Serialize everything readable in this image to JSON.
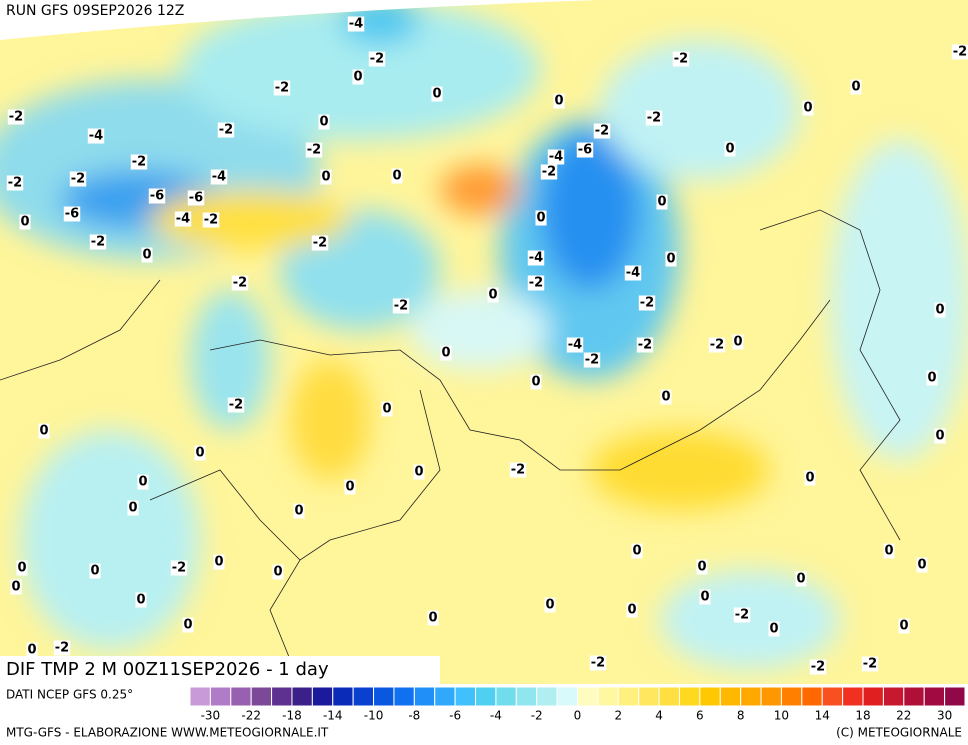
{
  "header": {
    "run": "RUN GFS 09SEP2026 12Z"
  },
  "map": {
    "title": "DIF TMP 2 M 00Z11SEP2026 - 1 day",
    "contour_labels": [
      "-4",
      "-2",
      "0",
      "-2",
      "-2",
      "0",
      "-2",
      "0",
      "-2",
      "0",
      "0",
      "-4",
      "-2",
      "0",
      "-2",
      "-2",
      "-2",
      "-2",
      "-4",
      "-6",
      "0",
      "-2",
      "-2",
      "-4",
      "0",
      "0",
      "-2",
      "-6",
      "-6",
      "0",
      "-6",
      "0",
      "-4",
      "-2",
      "0",
      "-2",
      "-2",
      "0",
      "-4",
      "0",
      "-2",
      "-2",
      "-4",
      "0",
      "-2",
      "-2",
      "0",
      "-4",
      "-2",
      "-2",
      "-2",
      "0",
      "0",
      "0",
      "0",
      "0",
      "-2",
      "0",
      "0",
      "0",
      "0",
      "-2",
      "0",
      "0",
      "0",
      "0",
      "0",
      "0",
      "0",
      "0",
      "-2",
      "0",
      "0",
      "0",
      "0",
      "0",
      "0",
      "0",
      "0",
      "0",
      "0",
      "0",
      "0",
      "-2",
      "0",
      "0",
      "0",
      "0",
      "0",
      "-2",
      "-2",
      "-2",
      "-2"
    ]
  },
  "legend": {
    "source": "DATI NCEP GFS 0.25°",
    "colors": [
      "#c89ad8",
      "#b07cc8",
      "#9860b0",
      "#7c4898",
      "#5e3090",
      "#3a2088",
      "#1a1a9a",
      "#0a2ab8",
      "#0a40d0",
      "#0a58e0",
      "#1070f0",
      "#2090f8",
      "#30a8fc",
      "#40c0fc",
      "#50d0f0",
      "#70dcec",
      "#90e6ee",
      "#b0eef2",
      "#d8fafa",
      "#fffcc0",
      "#fff8a0",
      "#fff080",
      "#ffe860",
      "#ffe040",
      "#ffd820",
      "#ffc800",
      "#ffb800",
      "#ffa800",
      "#ff9800",
      "#ff8000",
      "#ff6800",
      "#f85020",
      "#f03020",
      "#e02020",
      "#c81830",
      "#b01038",
      "#a00a40",
      "#900848"
    ],
    "ticks": [
      "-30",
      "-22",
      "-18",
      "-14",
      "-10",
      "-8",
      "-6",
      "-4",
      "-2",
      "0",
      "2",
      "4",
      "6",
      "8",
      "10",
      "14",
      "18",
      "22",
      "30"
    ]
  },
  "footer": {
    "left": "MTG-GFS - ELABORAZIONE WWW.METEOGIORNALE.IT",
    "right": "(C) METEOGIORNALE"
  }
}
